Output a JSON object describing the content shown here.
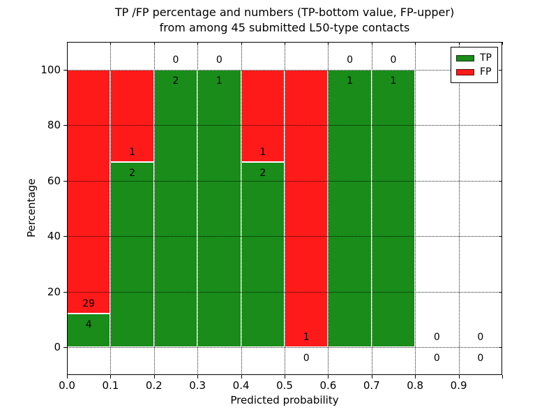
{
  "figure": {
    "title_line1": "TP /FP percentage and numbers (TP-bottom value, FP-upper)",
    "title_line2": "from among 45 submitted L50-type contacts"
  },
  "chart_data": {
    "type": "bar",
    "stacked": true,
    "normalized_to_percent": true,
    "title": "TP /FP percentage and numbers (TP-bottom value, FP-upper)\nfrom among 45 submitted L50-type contacts",
    "xlabel": "Predicted probability",
    "ylabel": "Percentage",
    "xlim": [
      0.0,
      1.0
    ],
    "ylim": [
      -10,
      110
    ],
    "x_tick_labels": [
      "0.0",
      "0.1",
      "0.2",
      "0.3",
      "0.4",
      "0.5",
      "0.6",
      "0.7",
      "0.8",
      "0.9"
    ],
    "y_tick_values": [
      0,
      20,
      40,
      60,
      80,
      100
    ],
    "grid": {
      "on": true,
      "style": "dotted",
      "color": "#000000"
    },
    "legend": {
      "position": "upper right"
    },
    "series": [
      {
        "name": "TP",
        "color": "#198c19"
      },
      {
        "name": "FP",
        "color": "#ff1a1a"
      }
    ],
    "bin_width": 0.1,
    "bins": [
      {
        "x0": 0.0,
        "x1": 0.1,
        "tp_count": 4,
        "fp_count": 29,
        "tp_pct": 12.12,
        "fp_pct": 87.88
      },
      {
        "x0": 0.1,
        "x1": 0.2,
        "tp_count": 2,
        "fp_count": 1,
        "tp_pct": 66.67,
        "fp_pct": 33.33
      },
      {
        "x0": 0.2,
        "x1": 0.3,
        "tp_count": 2,
        "fp_count": 0,
        "tp_pct": 100,
        "fp_pct": 0
      },
      {
        "x0": 0.3,
        "x1": 0.4,
        "tp_count": 1,
        "fp_count": 0,
        "tp_pct": 100,
        "fp_pct": 0
      },
      {
        "x0": 0.4,
        "x1": 0.5,
        "tp_count": 2,
        "fp_count": 1,
        "tp_pct": 66.67,
        "fp_pct": 33.33
      },
      {
        "x0": 0.5,
        "x1": 0.6,
        "tp_count": 0,
        "fp_count": 1,
        "tp_pct": 0,
        "fp_pct": 100
      },
      {
        "x0": 0.6,
        "x1": 0.7,
        "tp_count": 1,
        "fp_count": 0,
        "tp_pct": 100,
        "fp_pct": 0
      },
      {
        "x0": 0.7,
        "x1": 0.8,
        "tp_count": 1,
        "fp_count": 0,
        "tp_pct": 100,
        "fp_pct": 0
      },
      {
        "x0": 0.8,
        "x1": 0.9,
        "tp_count": 0,
        "fp_count": 0,
        "tp_pct": 0,
        "fp_pct": 0
      },
      {
        "x0": 0.9,
        "x1": 1.0,
        "tp_count": 0,
        "fp_count": 0,
        "tp_pct": 0,
        "fp_pct": 0
      }
    ],
    "total_contacts": 45
  }
}
